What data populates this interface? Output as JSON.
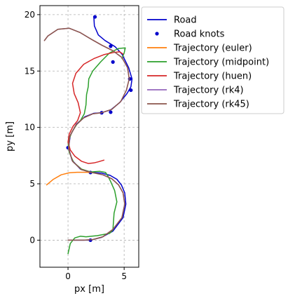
{
  "chart_data": {
    "type": "line",
    "title": "",
    "xlabel": "px [m]",
    "ylabel": "py [m]",
    "xlim": [
      -2.5,
      6.3
    ],
    "ylim": [
      -2.4,
      20.8
    ],
    "xticks": [
      0,
      5
    ],
    "yticks": [
      0,
      5,
      10,
      15,
      20
    ],
    "grid": true,
    "legend_position": "outside-right",
    "series": [
      {
        "name": "Road",
        "kind": "line",
        "color": "#0000cc",
        "x": [
          0.5,
          1.0,
          2.0,
          3.0,
          4.0,
          4.9,
          5.15,
          5.05,
          4.75,
          4.35,
          3.75,
          3.0,
          2.0,
          1.1,
          0.35,
          0.05,
          0.2,
          0.75,
          1.5,
          2.3,
          3.0,
          3.8,
          4.6,
          5.25,
          5.6,
          5.7,
          5.4,
          4.8,
          4.2,
          3.8,
          3.3,
          2.7,
          2.35,
          2.3
        ],
        "y": [
          0.0,
          0.0,
          0.0,
          0.25,
          0.8,
          2.0,
          3.2,
          4.2,
          4.9,
          5.4,
          5.75,
          5.95,
          6.0,
          6.3,
          7.1,
          8.2,
          9.3,
          10.3,
          10.95,
          11.25,
          11.3,
          11.55,
          12.2,
          13.0,
          13.6,
          14.3,
          15.3,
          16.5,
          17.15,
          17.4,
          17.7,
          18.2,
          19.0,
          19.8
        ]
      },
      {
        "name": "Road knots",
        "kind": "scatter",
        "color": "#0000cc",
        "x": [
          2.0,
          2.0,
          0.0,
          3.0,
          3.8,
          5.6,
          5.5,
          4.0,
          3.8,
          2.4
        ],
        "y": [
          0.0,
          6.0,
          8.2,
          11.3,
          11.35,
          13.3,
          14.3,
          15.8,
          17.2,
          19.8
        ]
      },
      {
        "name": "Trajectory (euler)",
        "kind": "line",
        "color": "#ff7f0e",
        "x": [
          -1.9,
          -1.3,
          -0.6,
          0.1,
          0.8,
          1.6,
          2.2
        ],
        "y": [
          4.9,
          5.4,
          5.8,
          5.97,
          6.02,
          6.02,
          6.0
        ]
      },
      {
        "name": "Trajectory (midpoint)",
        "kind": "line",
        "color": "#2ca02c",
        "x": [
          0.0,
          0.2,
          0.6,
          1.1,
          1.6,
          2.6,
          3.7,
          4.0,
          4.05,
          4.1,
          4.35,
          4.15,
          3.8,
          3.55,
          3.35,
          2.85,
          2.0,
          1.2,
          0.5,
          0.1,
          0.0,
          0.35,
          0.8,
          1.1,
          1.45,
          1.6,
          1.65,
          1.8,
          1.85,
          2.2,
          2.9,
          3.7,
          4.5,
          5.1,
          5.0,
          4.8
        ],
        "y": [
          -1.2,
          -0.3,
          0.2,
          0.35,
          0.3,
          0.4,
          0.6,
          0.9,
          1.6,
          2.4,
          3.4,
          4.4,
          5.2,
          5.7,
          6.0,
          6.1,
          6.05,
          6.3,
          6.9,
          7.8,
          8.7,
          9.6,
          10.3,
          10.6,
          11.2,
          12.0,
          12.9,
          13.6,
          14.3,
          15.0,
          15.8,
          16.6,
          17.0,
          17.05,
          16.6,
          16.1
        ]
      },
      {
        "name": "Trajectory (huen)",
        "kind": "line",
        "color": "#d62728",
        "x": [
          3.2,
          2.7,
          2.3,
          1.8,
          1.2,
          0.6,
          0.2,
          0.0,
          0.1,
          0.45,
          0.85,
          1.1,
          0.9,
          0.55,
          0.4,
          0.7,
          1.4,
          2.3,
          3.2,
          4.1,
          4.6,
          4.9
        ],
        "y": [
          7.1,
          6.95,
          6.85,
          6.8,
          7.0,
          7.45,
          8.0,
          8.7,
          9.4,
          10.1,
          10.6,
          11.3,
          12.2,
          13.0,
          13.9,
          14.8,
          15.6,
          16.1,
          16.45,
          16.65,
          16.7,
          16.5
        ]
      },
      {
        "name": "Trajectory (rk4)",
        "kind": "line",
        "color": "#9467bd",
        "x": [
          0.0,
          0.6,
          1.4,
          2.2,
          3.1,
          4.0,
          4.8,
          5.05,
          4.9,
          4.5,
          3.9,
          3.1,
          2.1,
          1.2,
          0.4,
          0.05,
          0.15,
          0.7,
          1.4,
          2.2,
          3.0,
          3.9,
          4.7,
          5.2,
          5.45,
          5.3,
          4.8,
          4.0,
          3.0,
          2.1,
          1.1,
          0.1,
          -0.9,
          -1.8,
          -2.1
        ],
        "y": [
          0.0,
          0.0,
          0.0,
          0.05,
          0.3,
          0.95,
          2.0,
          3.2,
          4.2,
          4.9,
          5.45,
          5.8,
          6.0,
          6.25,
          7.0,
          8.1,
          9.2,
          10.2,
          10.85,
          11.2,
          11.3,
          11.6,
          12.3,
          13.3,
          14.3,
          15.3,
          16.2,
          16.8,
          17.3,
          17.8,
          18.4,
          18.8,
          18.7,
          18.1,
          17.7
        ]
      },
      {
        "name": "Trajectory (rk45)",
        "kind": "line",
        "color": "#8c564b",
        "x": [
          0.0,
          0.6,
          1.4,
          2.2,
          3.1,
          4.0,
          4.8,
          5.05,
          4.9,
          4.5,
          3.9,
          3.1,
          2.1,
          1.2,
          0.4,
          0.05,
          0.15,
          0.7,
          1.4,
          2.2,
          3.0,
          3.9,
          4.7,
          5.2,
          5.45,
          5.3,
          4.8,
          4.0,
          3.0,
          2.1,
          1.1,
          0.1,
          -0.9,
          -1.8,
          -2.1
        ],
        "y": [
          0.0,
          0.0,
          0.0,
          0.05,
          0.3,
          0.95,
          2.0,
          3.2,
          4.2,
          4.9,
          5.45,
          5.8,
          6.0,
          6.25,
          7.0,
          8.1,
          9.2,
          10.2,
          10.85,
          11.2,
          11.3,
          11.6,
          12.3,
          13.3,
          14.3,
          15.3,
          16.2,
          16.8,
          17.3,
          17.8,
          18.4,
          18.8,
          18.7,
          18.1,
          17.7
        ]
      }
    ]
  }
}
